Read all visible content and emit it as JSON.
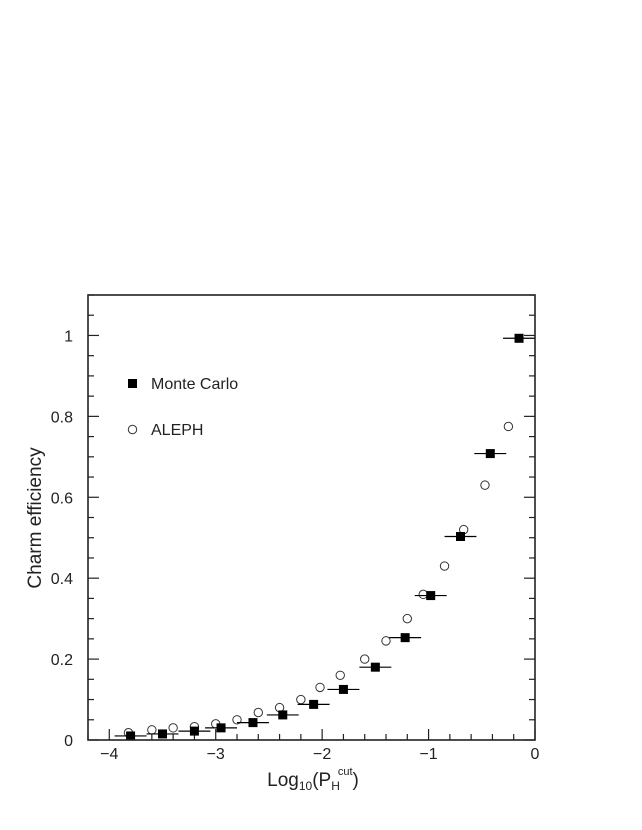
{
  "chart_data": {
    "type": "scatter",
    "xlabel": {
      "base": "Log",
      "sub": "10",
      "paren_open": "(P",
      "var_sub": "H",
      "var_sup": "cut",
      "paren_close": ")"
    },
    "ylabel": "Charm efficiency",
    "xlim": [
      -4.2,
      0
    ],
    "ylim": [
      0,
      1.1
    ],
    "x_ticks": [
      -4,
      -3,
      -2,
      -1,
      0
    ],
    "x_tick_labels": [
      "−4",
      "−3",
      "−2",
      "−1",
      "0"
    ],
    "y_ticks": [
      0,
      0.2,
      0.4,
      0.6,
      0.8,
      1
    ],
    "y_tick_labels": [
      "0",
      "0.2",
      "0.4",
      "0.6",
      "0.8",
      "1"
    ],
    "legend_position": "upper-left",
    "series": [
      {
        "name": "Monte Carlo",
        "marker": "filled-square",
        "x": [
          -3.8,
          -3.5,
          -3.2,
          -2.95,
          -2.65,
          -2.37,
          -2.08,
          -1.8,
          -1.5,
          -1.22,
          -0.98,
          -0.7,
          -0.42,
          -0.15
        ],
        "y": [
          0.01,
          0.015,
          0.022,
          0.03,
          0.043,
          0.062,
          0.088,
          0.125,
          0.18,
          0.253,
          0.357,
          0.503,
          0.708,
          0.993
        ],
        "x_err": 0.15
      },
      {
        "name": "ALEPH",
        "marker": "open-circle",
        "x": [
          -3.82,
          -3.6,
          -3.4,
          -3.2,
          -3.0,
          -2.8,
          -2.6,
          -2.4,
          -2.2,
          -2.02,
          -1.83,
          -1.6,
          -1.4,
          -1.2,
          -1.05,
          -0.85,
          -0.67,
          -0.47,
          -0.25
        ],
        "y": [
          0.018,
          0.025,
          0.03,
          0.033,
          0.04,
          0.05,
          0.068,
          0.08,
          0.1,
          0.13,
          0.16,
          0.2,
          0.245,
          0.3,
          0.36,
          0.43,
          0.52,
          0.63,
          0.775
        ]
      }
    ]
  }
}
